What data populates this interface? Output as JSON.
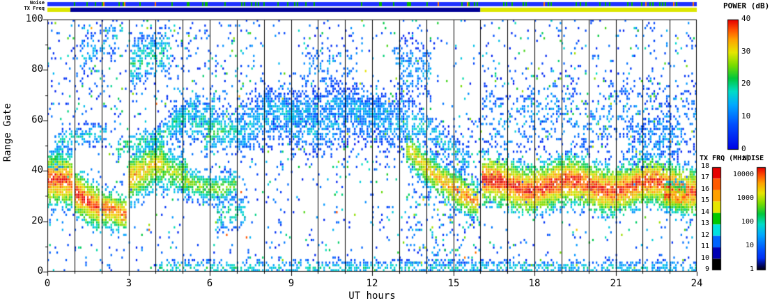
{
  "chart_data": {
    "type": "heatmap",
    "title": "",
    "xlabel": "UT hours",
    "ylabel": "Range Gate",
    "xlim": [
      0,
      24
    ],
    "ylim": [
      0,
      100
    ],
    "x_ticks": [
      0,
      3,
      6,
      9,
      12,
      15,
      18,
      21,
      24
    ],
    "y_ticks": [
      0,
      20,
      40,
      60,
      80,
      100
    ],
    "hour_gridlines": true,
    "grid_color": "#000000",
    "colormap": [
      [
        0,
        "#0000e6"
      ],
      [
        8,
        "#0050ff"
      ],
      [
        14,
        "#00aaff"
      ],
      [
        18,
        "#00dcc8"
      ],
      [
        22,
        "#00c83c"
      ],
      [
        26,
        "#78dc00"
      ],
      [
        30,
        "#e6e600"
      ],
      [
        34,
        "#ffa000"
      ],
      [
        37,
        "#ff5000"
      ],
      [
        40,
        "#e60000"
      ]
    ],
    "colorbars": {
      "power": {
        "label": "POWER (dB)",
        "ticks": [
          40,
          30,
          20,
          10,
          0
        ],
        "range": [
          0,
          40
        ]
      },
      "tx": {
        "label": "TX FRQ (MHz)",
        "ticks": [
          18,
          17,
          16,
          15,
          14,
          13,
          12,
          11,
          10,
          9
        ],
        "colors": [
          "#e60000",
          "#ff5a00",
          "#ffa000",
          "#e6e600",
          "#00c800",
          "#00e1e1",
          "#0064ff",
          "#0000b4",
          "#000000"
        ]
      },
      "noise": {
        "label": "NOISE",
        "ticks": [
          "10000",
          "1000",
          "100",
          "10",
          "1"
        ]
      }
    },
    "strips": {
      "noise_label": "Noise",
      "tx_label": "TX Freq",
      "noise_base_color": "#1e32ff",
      "noise_speck_green": "#00b400",
      "noise_speck_orange": "#ff7800",
      "tx_segments": [
        {
          "t0": 0.0,
          "t1": 0.85,
          "color": "#dce600"
        },
        {
          "t0": 0.85,
          "t1": 16.0,
          "color": "#000096"
        },
        {
          "t0": 16.0,
          "t1": 24.0,
          "color": "#dce600"
        }
      ]
    },
    "bands": [
      [
        0.0,
        0.95,
        36,
        34,
        7,
        40,
        38,
        0.92,
        1
      ],
      [
        1.0,
        1.95,
        32,
        25,
        6,
        40,
        38,
        0.92,
        1
      ],
      [
        2.0,
        2.95,
        24,
        22,
        5,
        38,
        36,
        0.9,
        1
      ],
      [
        3.0,
        4.3,
        38,
        41,
        7,
        34,
        30,
        0.85,
        2
      ],
      [
        4.3,
        5.2,
        41,
        40,
        6,
        28,
        26,
        0.7,
        2
      ],
      [
        2.6,
        5.6,
        46,
        64,
        3,
        22,
        20,
        0.55,
        2
      ],
      [
        5.0,
        7.0,
        33,
        35,
        4,
        28,
        24,
        0.75,
        2
      ],
      [
        4.6,
        6.2,
        58,
        63,
        5,
        20,
        18,
        0.55,
        2
      ],
      [
        5.8,
        7.3,
        52,
        56,
        5,
        24,
        16,
        0.6,
        2
      ],
      [
        7.0,
        13.4,
        58,
        61,
        7,
        15,
        14,
        0.55,
        3
      ],
      [
        8.0,
        12.5,
        65,
        64,
        4,
        16,
        14,
        0.4,
        2
      ],
      [
        13.3,
        15.3,
        48,
        30,
        5,
        30,
        36,
        0.85,
        1
      ],
      [
        15.3,
        15.95,
        30,
        27,
        5,
        36,
        34,
        0.85,
        1
      ],
      [
        13.5,
        15.6,
        58,
        44,
        4,
        18,
        16,
        0.5,
        2
      ],
      [
        16.1,
        24.0,
        34,
        33,
        6.5,
        40,
        38,
        0.92,
        2
      ],
      [
        16.1,
        24.0,
        62,
        60,
        9,
        13,
        12,
        0.18,
        3
      ],
      [
        22.8,
        23.6,
        30,
        27,
        4,
        38,
        36,
        0.8,
        1
      ],
      [
        4.0,
        24.0,
        1,
        1,
        2,
        18,
        16,
        0.5,
        0
      ],
      [
        0.3,
        2.2,
        50,
        55,
        3,
        18,
        16,
        0.35,
        1
      ],
      [
        3.1,
        4.6,
        80,
        88,
        6,
        20,
        18,
        0.45,
        1
      ],
      [
        1.2,
        2.6,
        85,
        92,
        5,
        16,
        14,
        0.3,
        1
      ],
      [
        9.5,
        11.5,
        82,
        80,
        7,
        12,
        12,
        0.2,
        2
      ],
      [
        12.8,
        14.2,
        78,
        80,
        8,
        13,
        13,
        0.3,
        2
      ],
      [
        6.3,
        7.3,
        21,
        24,
        4,
        22,
        18,
        0.4,
        1
      ],
      [
        21.5,
        23.3,
        53,
        49,
        6,
        14,
        13,
        0.3,
        2
      ],
      [
        0.0,
        0.6,
        44,
        46,
        3,
        24,
        22,
        0.6,
        1
      ]
    ],
    "noise_regions": [
      [
        0,
        24,
        0,
        100,
        0.045
      ],
      [
        0,
        8,
        62,
        100,
        0.05
      ],
      [
        13.2,
        16,
        0,
        30,
        0.1
      ],
      [
        16,
        24,
        46,
        100,
        0.03
      ],
      [
        8.5,
        13.5,
        40,
        75,
        0.06
      ],
      [
        13.8,
        16.2,
        30,
        60,
        0.08
      ]
    ]
  }
}
